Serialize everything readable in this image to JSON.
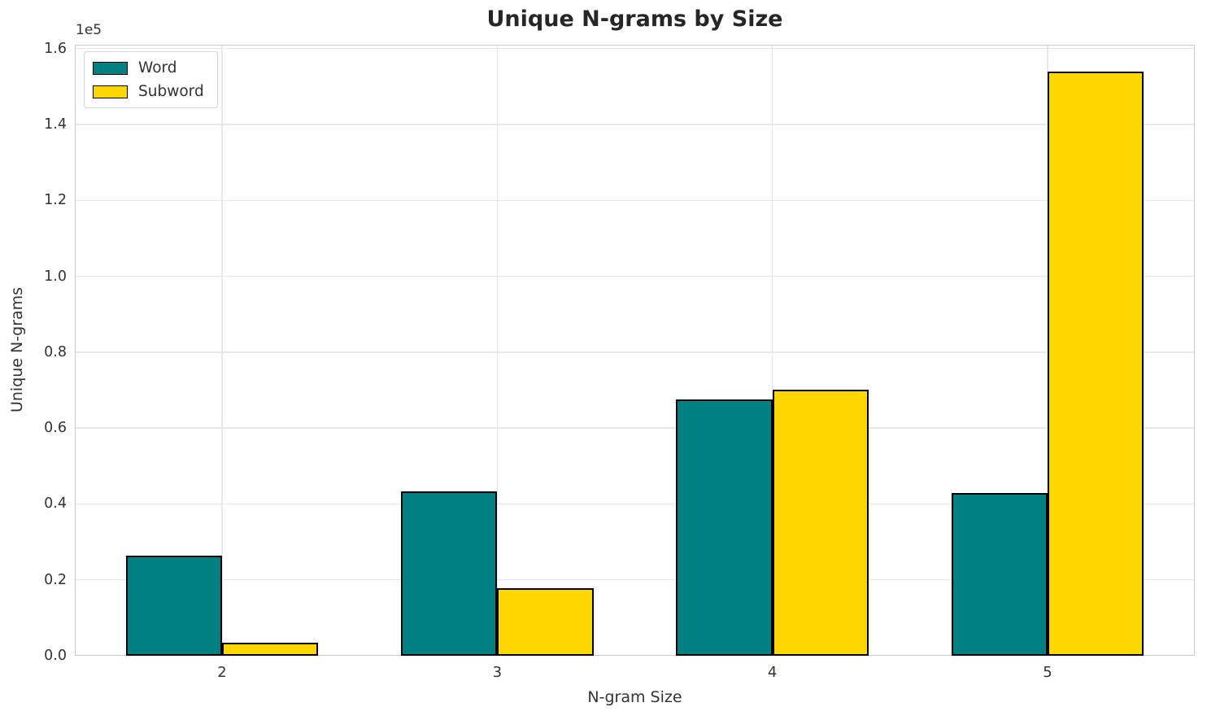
{
  "chart_data": {
    "type": "bar",
    "title": "Unique N-grams by Size",
    "xlabel": "N-gram Size",
    "ylabel": "Unique N-grams",
    "offset_text": "1e5",
    "categories": [
      "2",
      "3",
      "4",
      "5"
    ],
    "x_positions": [
      2,
      3,
      4,
      5
    ],
    "series": [
      {
        "name": "Word",
        "color": "#008080",
        "values": [
          26400,
          43300,
          67500,
          42900
        ]
      },
      {
        "name": "Subword",
        "color": "#FFD700",
        "values": [
          3400,
          17800,
          70100,
          153900
        ]
      }
    ],
    "bar_width": 0.35,
    "bar_edge_color": "#000000",
    "xlim": [
      1.465,
      5.535
    ],
    "ylim": [
      0,
      161000
    ],
    "yticks": [
      "0.0",
      "0.2",
      "0.4",
      "0.6",
      "0.8",
      "1.0",
      "1.2",
      "1.4",
      "1.6"
    ],
    "ytick_values": [
      0,
      20000,
      40000,
      60000,
      80000,
      100000,
      120000,
      140000,
      160000
    ],
    "grid": "both",
    "legend_position": "upper-left"
  },
  "colors": {
    "grid": "#e8e8e8",
    "spine": "#cccccc",
    "tick_text": "#333333",
    "title_text": "#262626"
  }
}
